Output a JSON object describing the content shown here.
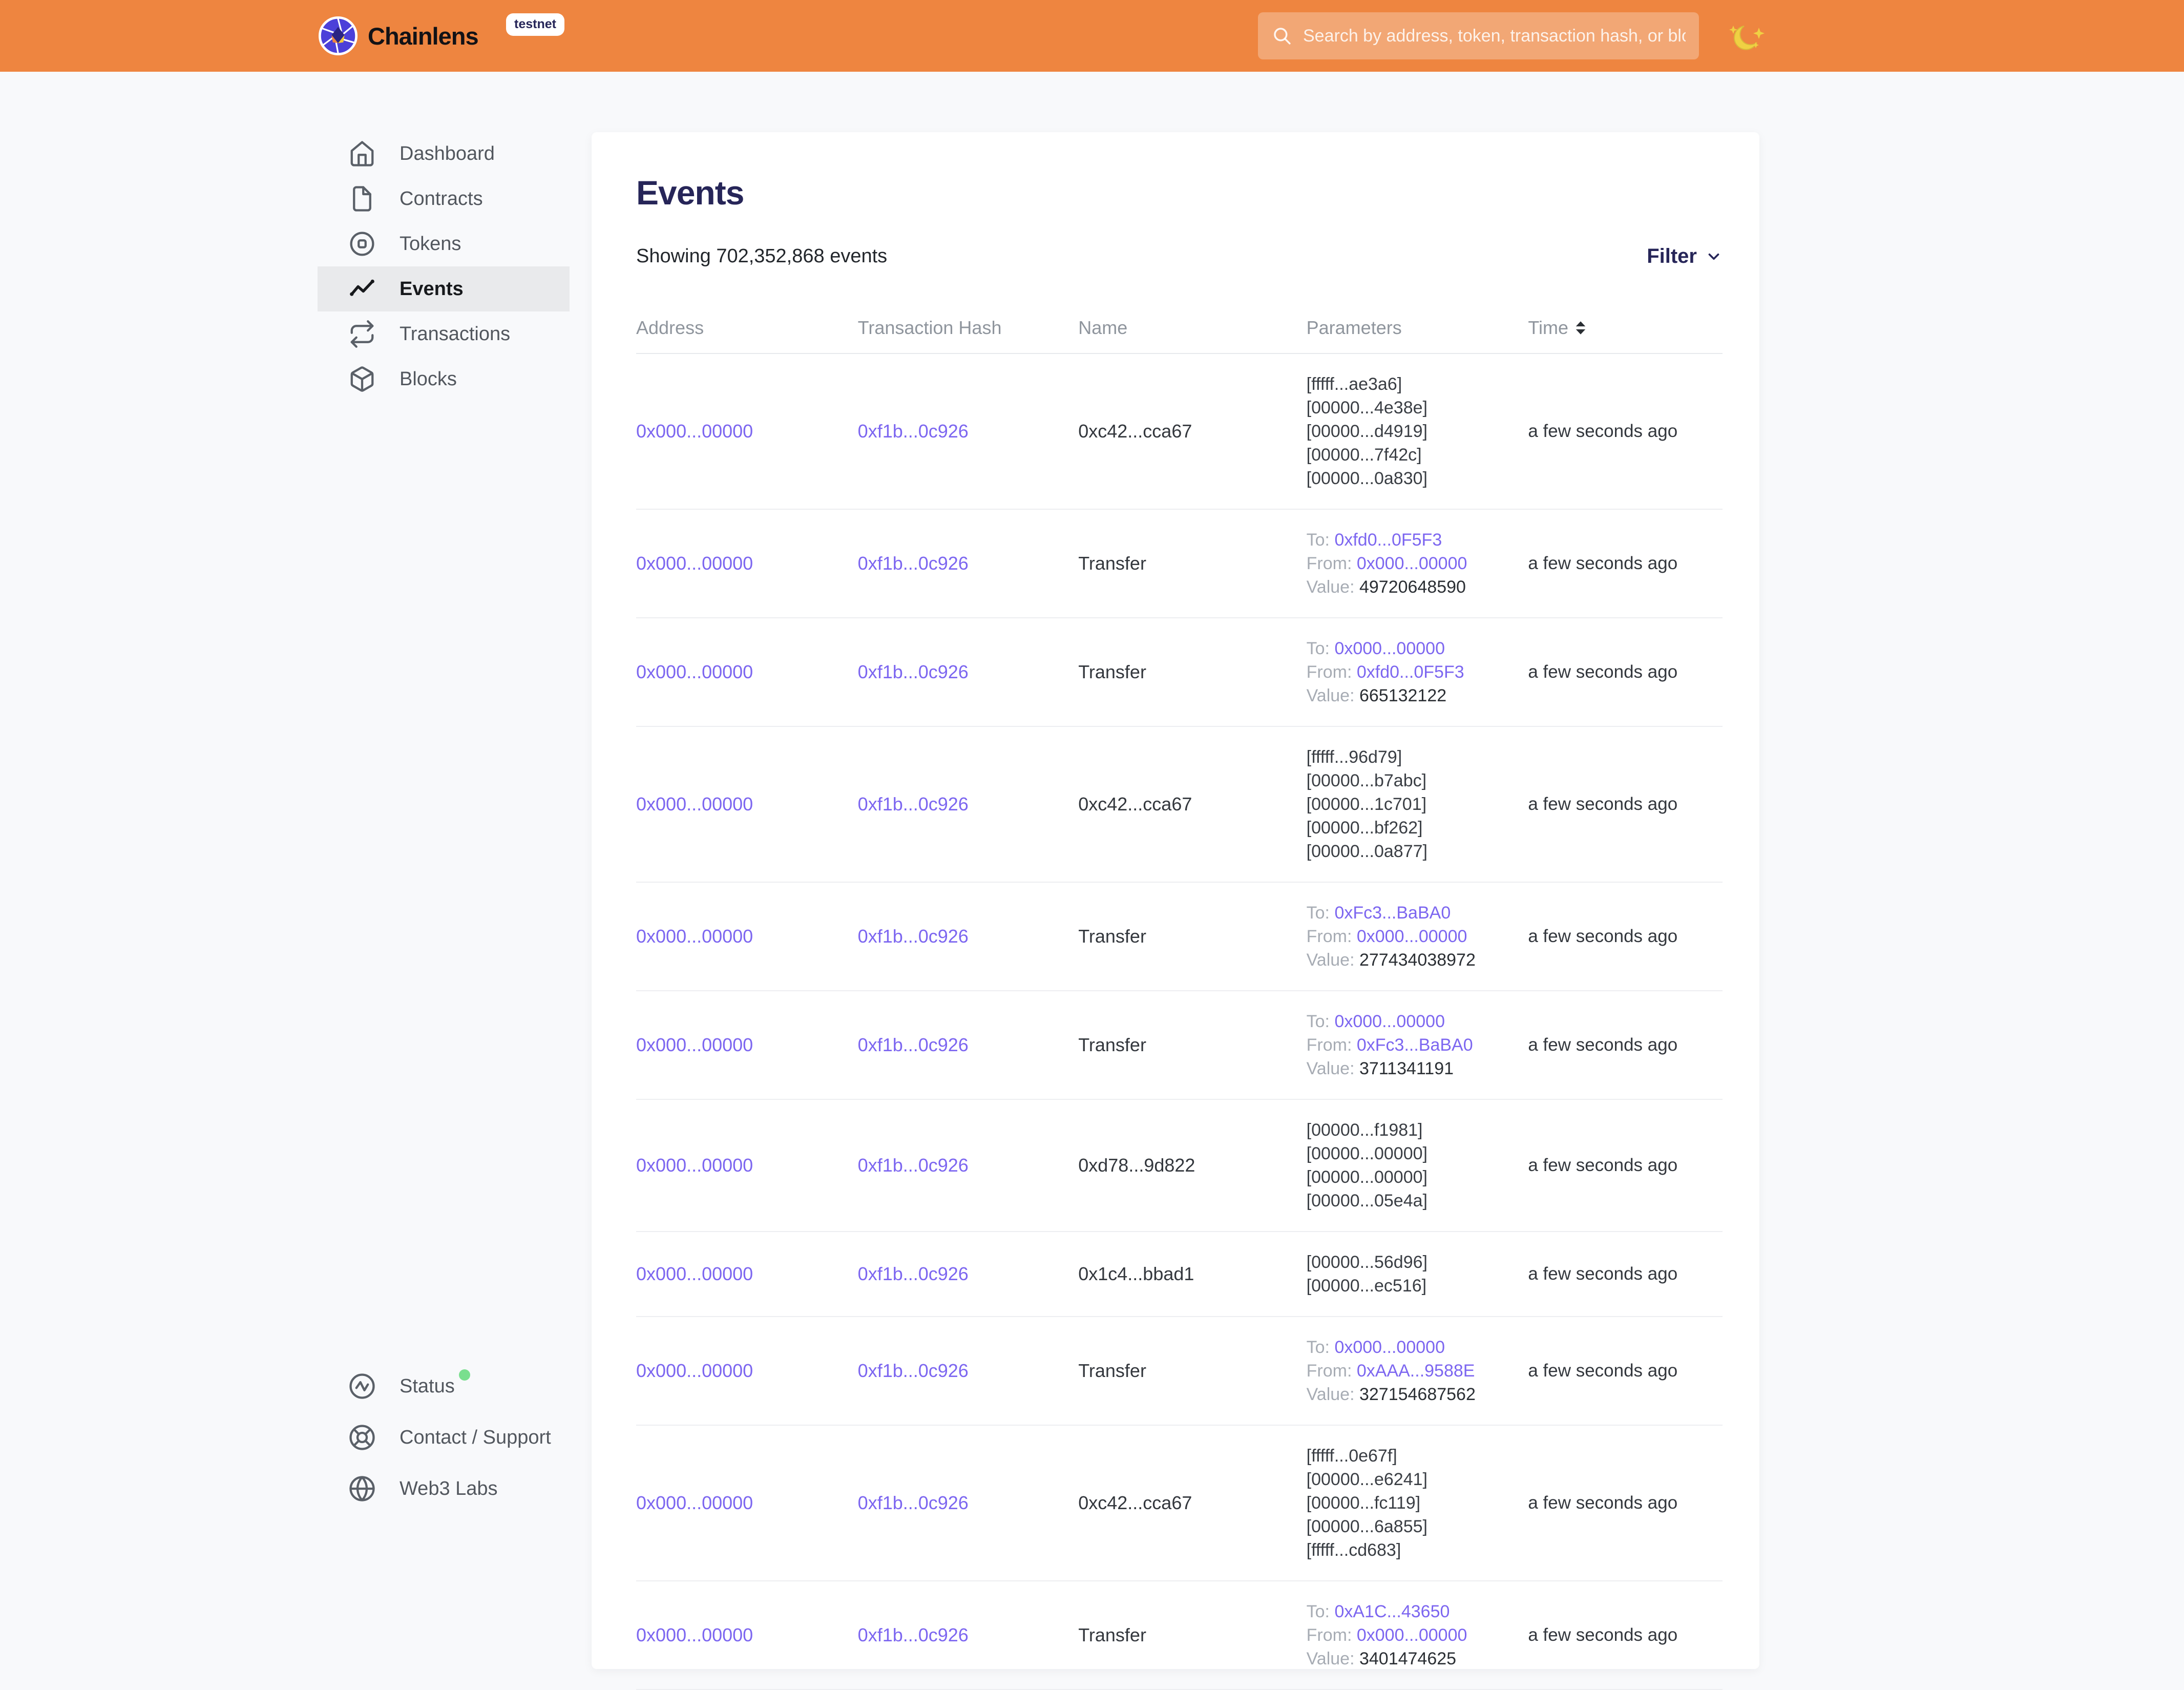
{
  "colors": {
    "header_bg": "#EE8540",
    "link_purple": "#7C66F0",
    "title_navy": "#262558",
    "status_green": "#79DF8E",
    "active_item_bg": "#E9EAEC",
    "moon_yellow": "#F0D043"
  },
  "header": {
    "brand": "Chainlens",
    "badge": "testnet",
    "search": {
      "placeholder": "Search by address, token, transaction hash, or block number",
      "value": "",
      "icon": "search-icon"
    },
    "theme_toggle_icon": "moon-icon"
  },
  "sidebar": {
    "items": [
      {
        "label": "Dashboard",
        "icon": "home-icon",
        "active": false
      },
      {
        "label": "Contracts",
        "icon": "file-icon",
        "active": false
      },
      {
        "label": "Tokens",
        "icon": "token-icon",
        "active": false
      },
      {
        "label": "Events",
        "icon": "activity-chart-icon",
        "active": true
      },
      {
        "label": "Transactions",
        "icon": "repeat-icon",
        "active": false
      },
      {
        "label": "Blocks",
        "icon": "cube-icon",
        "active": false
      }
    ],
    "footer_items": [
      {
        "label": "Status",
        "icon": "pulse-circle-icon",
        "online_dot": true
      },
      {
        "label": "Contact / Support",
        "icon": "life-buoy-icon",
        "online_dot": false
      },
      {
        "label": "Web3 Labs",
        "icon": "globe-icon",
        "online_dot": false
      }
    ]
  },
  "main": {
    "title": "Events",
    "summary": "Showing 702,352,868 events",
    "filter": {
      "label": "Filter",
      "icon": "chevron-down-icon"
    },
    "table": {
      "columns": [
        "Address",
        "Transaction Hash",
        "Name",
        "Parameters",
        "Time"
      ],
      "sort_column": "Time",
      "sort_icon": "sort-updown-icon",
      "transfer_labels": {
        "to": "To:",
        "from": "From:",
        "value": "Value:"
      },
      "rows": [
        {
          "address": "0x000...00000",
          "tx_hash": "0xf1b...0c926",
          "name": "0xc42...cca67",
          "params": [
            "[fffff...ae3a6]",
            "[00000...4e38e]",
            "[00000...d4919]",
            "[00000...7f42c]",
            "[00000...0a830]"
          ],
          "time": "a few seconds ago"
        },
        {
          "address": "0x000...00000",
          "tx_hash": "0xf1b...0c926",
          "name": "Transfer",
          "transfer": {
            "to": "0xfd0...0F5F3",
            "from": "0x000...00000",
            "value": "49720648590"
          },
          "time": "a few seconds ago"
        },
        {
          "address": "0x000...00000",
          "tx_hash": "0xf1b...0c926",
          "name": "Transfer",
          "transfer": {
            "to": "0x000...00000",
            "from": "0xfd0...0F5F3",
            "value": "665132122"
          },
          "time": "a few seconds ago"
        },
        {
          "address": "0x000...00000",
          "tx_hash": "0xf1b...0c926",
          "name": "0xc42...cca67",
          "params": [
            "[fffff...96d79]",
            "[00000...b7abc]",
            "[00000...1c701]",
            "[00000...bf262]",
            "[00000...0a877]"
          ],
          "time": "a few seconds ago"
        },
        {
          "address": "0x000...00000",
          "tx_hash": "0xf1b...0c926",
          "name": "Transfer",
          "transfer": {
            "to": "0xFc3...BaBA0",
            "from": "0x000...00000",
            "value": "277434038972"
          },
          "time": "a few seconds ago"
        },
        {
          "address": "0x000...00000",
          "tx_hash": "0xf1b...0c926",
          "name": "Transfer",
          "transfer": {
            "to": "0x000...00000",
            "from": "0xFc3...BaBA0",
            "value": "3711341191"
          },
          "time": "a few seconds ago"
        },
        {
          "address": "0x000...00000",
          "tx_hash": "0xf1b...0c926",
          "name": "0xd78...9d822",
          "params": [
            "[00000...f1981]",
            "[00000...00000]",
            "[00000...00000]",
            "[00000...05e4a]"
          ],
          "time": "a few seconds ago"
        },
        {
          "address": "0x000...00000",
          "tx_hash": "0xf1b...0c926",
          "name": "0x1c4...bbad1",
          "params": [
            "[00000...56d96]",
            "[00000...ec516]"
          ],
          "time": "a few seconds ago"
        },
        {
          "address": "0x000...00000",
          "tx_hash": "0xf1b...0c926",
          "name": "Transfer",
          "transfer": {
            "to": "0x000...00000",
            "from": "0xAAA...9588E",
            "value": "327154687562"
          },
          "time": "a few seconds ago"
        },
        {
          "address": "0x000...00000",
          "tx_hash": "0xf1b...0c926",
          "name": "0xc42...cca67",
          "params": [
            "[fffff...0e67f]",
            "[00000...e6241]",
            "[00000...fc119]",
            "[00000...6a855]",
            "[fffff...cd683]"
          ],
          "time": "a few seconds ago"
        },
        {
          "address": "0x000...00000",
          "tx_hash": "0xf1b...0c926",
          "name": "Transfer",
          "transfer": {
            "to": "0xA1C...43650",
            "from": "0x000...00000",
            "value": "3401474625"
          },
          "time": "a few seconds ago"
        }
      ]
    }
  }
}
